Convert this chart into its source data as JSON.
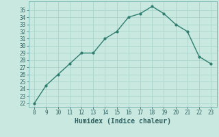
{
  "x": [
    8,
    9,
    10,
    11,
    12,
    13,
    14,
    15,
    16,
    17,
    18,
    19,
    20,
    21,
    22,
    23
  ],
  "y": [
    22,
    24.5,
    26,
    27.5,
    29,
    29,
    31,
    32,
    34,
    34.5,
    35.5,
    34.5,
    33,
    32,
    28.5,
    27.5
  ],
  "line_color": "#2e7d6e",
  "marker": "o",
  "bg_color": "#c8e8e0",
  "grid_color": "#a8d4cc",
  "xlabel": "Humidex (Indice chaleur)",
  "ylim": [
    21.5,
    36.2
  ],
  "xlim": [
    7.5,
    23.5
  ],
  "yticks": [
    22,
    23,
    24,
    25,
    26,
    27,
    28,
    29,
    30,
    31,
    32,
    33,
    34,
    35
  ],
  "xticks": [
    8,
    9,
    10,
    11,
    12,
    13,
    14,
    15,
    16,
    17,
    18,
    19,
    20,
    21,
    22,
    23
  ],
  "xlabel_fontsize": 7,
  "tick_fontsize": 5.5
}
